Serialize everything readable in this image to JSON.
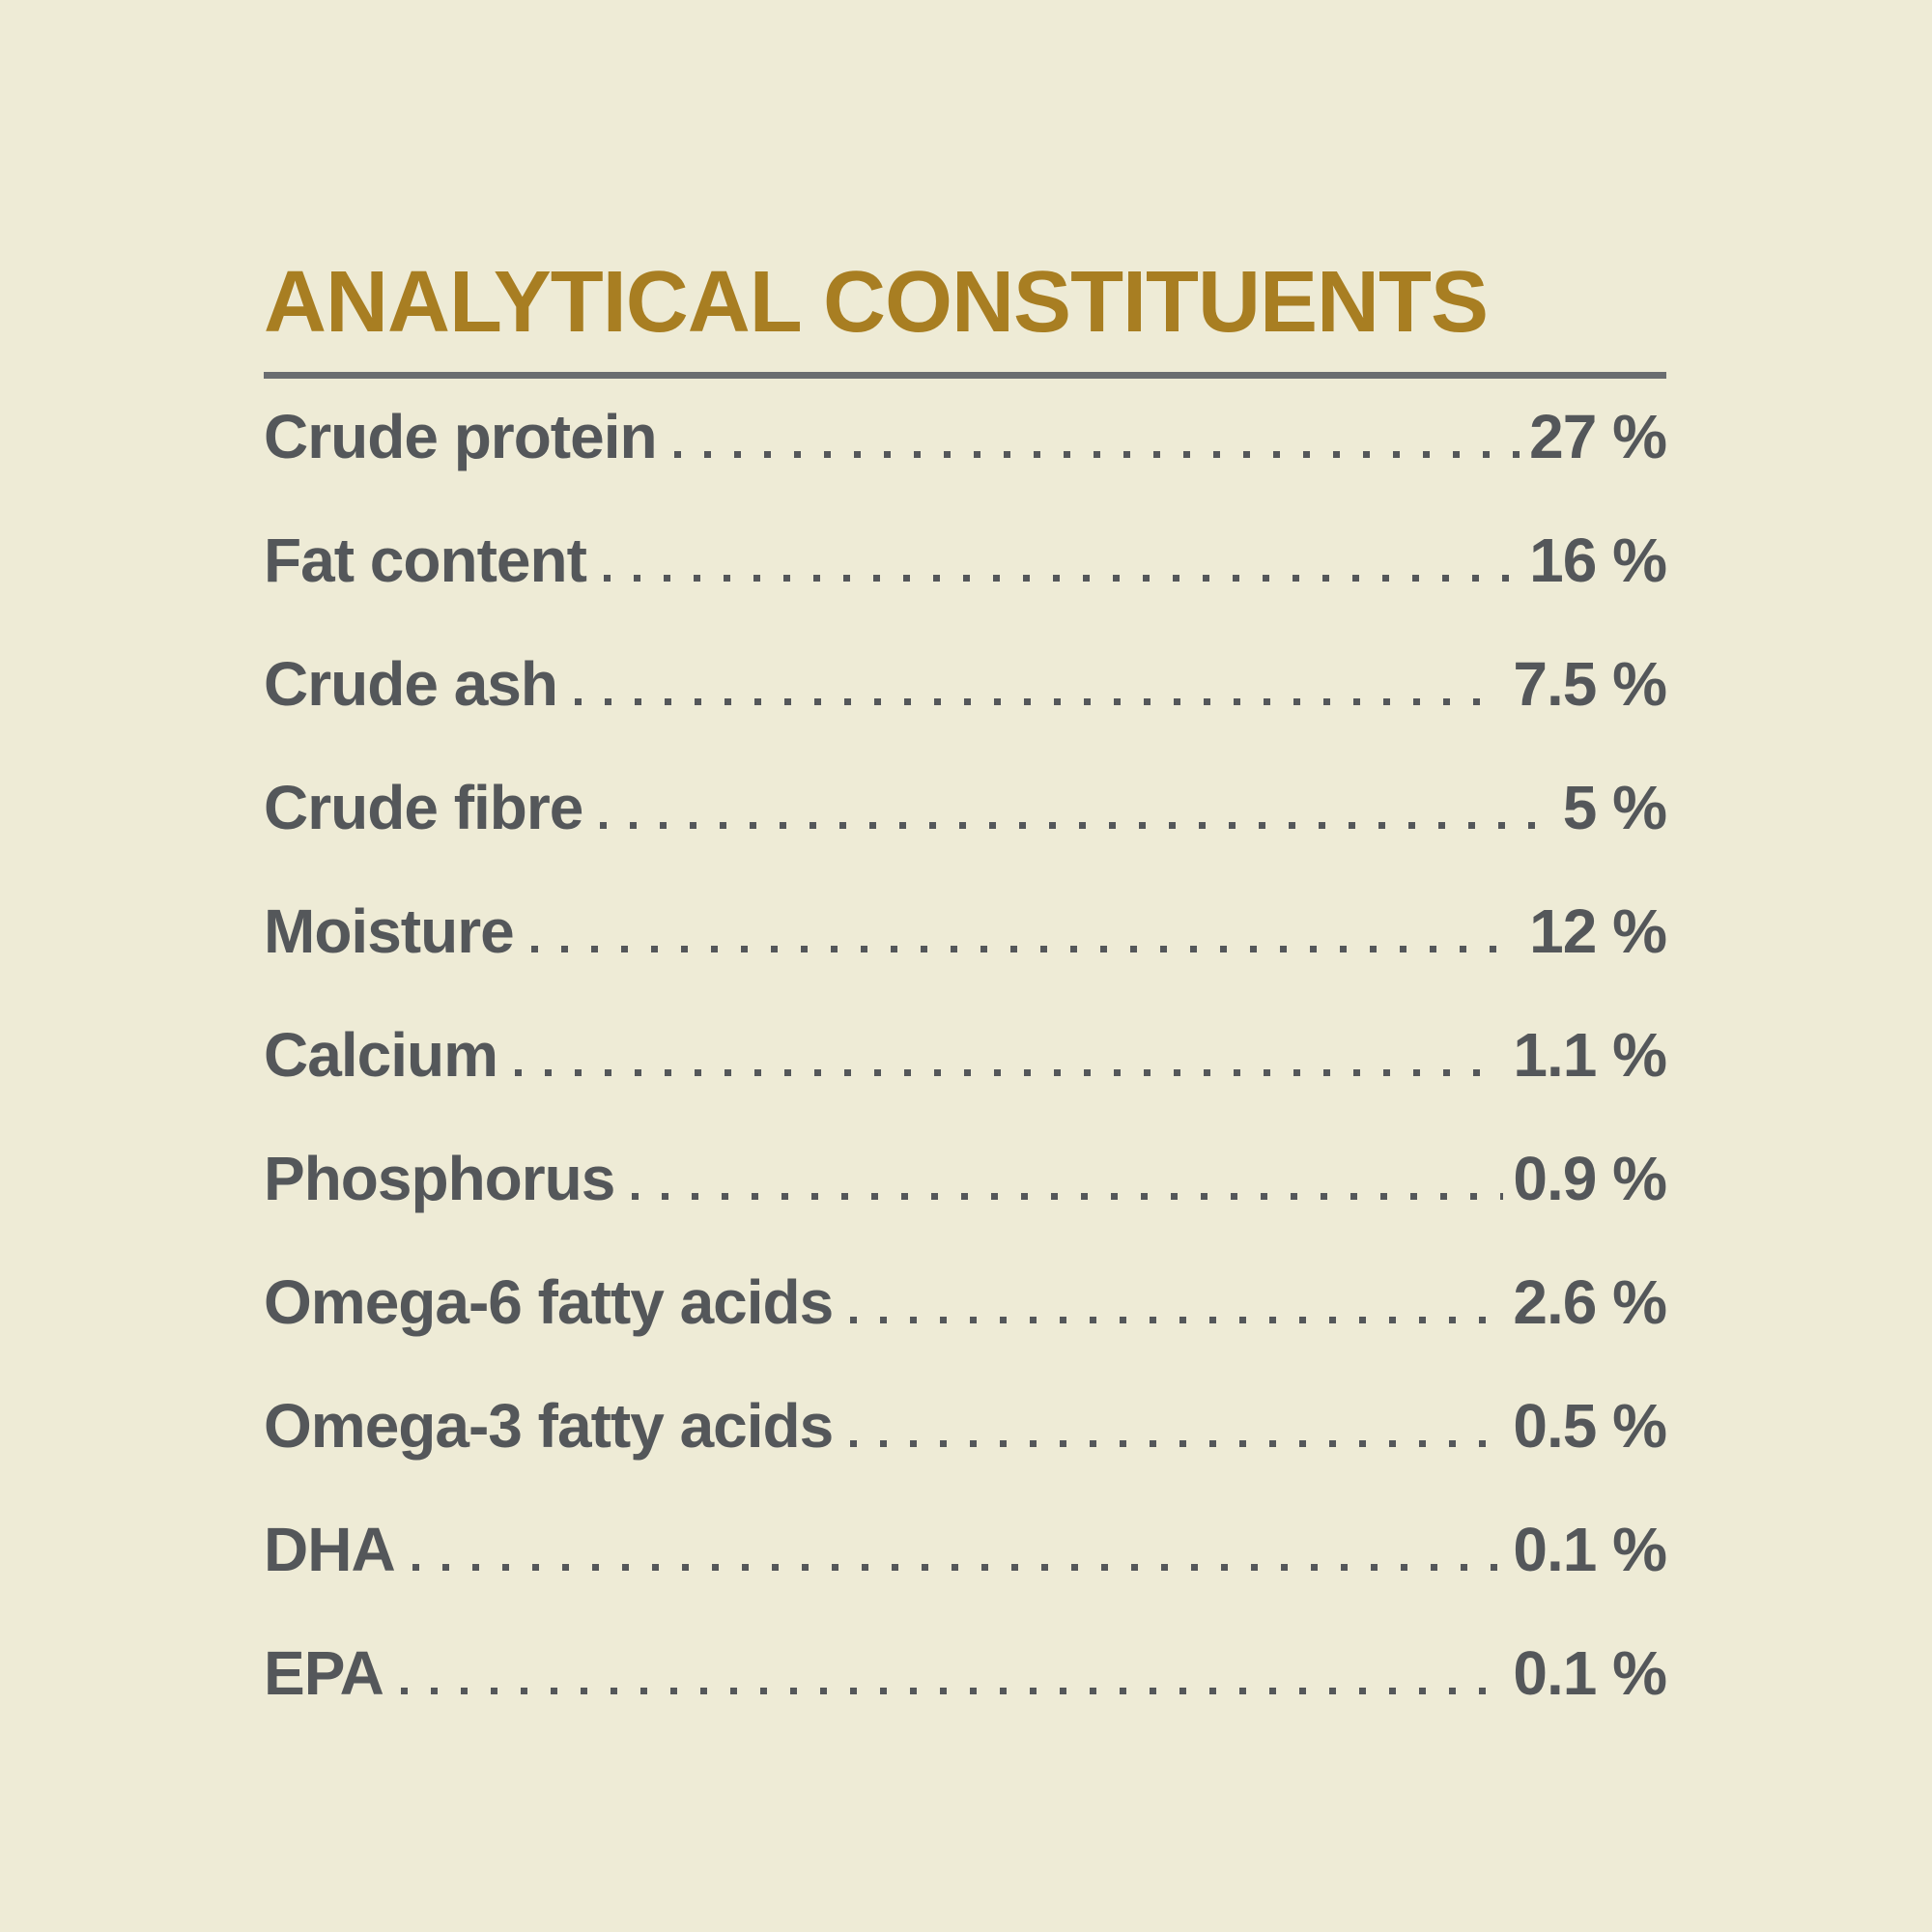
{
  "title": "ANALYTICAL CONSTITUENTS",
  "colors": {
    "background": "#EEEBD6",
    "title_gold": "#A87E22",
    "text_gray": "#54575A",
    "rule_gray": "#6A6D70"
  },
  "table": {
    "rows": [
      {
        "label": "Crude protein",
        "value": "27 %"
      },
      {
        "label": "Fat content",
        "value": "16 %"
      },
      {
        "label": "Crude ash",
        "value": "7.5 %"
      },
      {
        "label": "Crude fibre",
        "value": "5 %"
      },
      {
        "label": "Moisture",
        "value": "12 %"
      },
      {
        "label": "Calcium",
        "value": "1.1 %"
      },
      {
        "label": "Phosphorus",
        "value": "0.9 %"
      },
      {
        "label": "Omega-6 fatty acids",
        "value": "2.6 %"
      },
      {
        "label": "Omega-3 fatty acids",
        "value": "0.5 %"
      },
      {
        "label": "DHA",
        "value": "0.1 %"
      },
      {
        "label": "EPA",
        "value": "0.1 %"
      }
    ]
  }
}
